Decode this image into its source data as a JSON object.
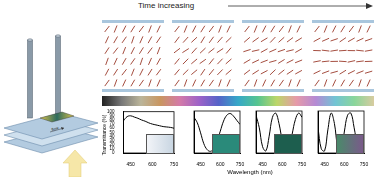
{
  "header": {
    "title": "Time increasing"
  },
  "device": {
    "label": "flow"
  },
  "spectra": {
    "x_label": "Wavelength (nm)",
    "y_label": "Transmittance (%)"
  },
  "chart_data": [
    {
      "type": "line",
      "x": [
        400,
        425,
        450,
        475,
        500,
        525,
        550,
        575,
        600,
        625,
        650,
        675,
        700,
        725,
        750
      ],
      "values": [
        78,
        88,
        90,
        87,
        84,
        80,
        77,
        73,
        70,
        68,
        66,
        64,
        63,
        62,
        60
      ],
      "color": "#000000",
      "xlim": [
        400,
        750
      ],
      "xticks": [
        450,
        600,
        750
      ],
      "ylim": [
        0,
        100
      ],
      "yticks": [
        0,
        10,
        20,
        30,
        40,
        50,
        60,
        70,
        80,
        90,
        100
      ]
    },
    {
      "type": "line",
      "x": [
        400,
        425,
        450,
        475,
        500,
        525,
        550,
        575,
        600,
        625,
        650,
        675,
        700,
        725,
        750
      ],
      "values": [
        85,
        72,
        48,
        22,
        8,
        4,
        10,
        28,
        52,
        76,
        90,
        94,
        88,
        78,
        68
      ],
      "color": "#000000",
      "xlim": [
        400,
        750
      ],
      "xticks": [
        450,
        600,
        750
      ],
      "ylim": [
        0,
        100
      ],
      "yticks": [
        0,
        10,
        20,
        30,
        40,
        50,
        60,
        70,
        80,
        90,
        100
      ],
      "tick_labels": "x"
    },
    {
      "type": "line",
      "x": [
        400,
        425,
        450,
        475,
        500,
        525,
        550,
        575,
        600,
        625,
        650,
        675,
        700,
        725,
        750
      ],
      "values": [
        90,
        60,
        15,
        5,
        40,
        85,
        95,
        70,
        30,
        6,
        10,
        45,
        80,
        95,
        85
      ],
      "color": "#000000",
      "xlim": [
        400,
        750
      ],
      "xticks": [
        450,
        600,
        750
      ],
      "ylim": [
        0,
        100
      ],
      "yticks": [
        0,
        10,
        20,
        30,
        40,
        50,
        60,
        70,
        80,
        90,
        100
      ],
      "tick_labels": "x"
    },
    {
      "type": "line",
      "x": [
        400,
        425,
        450,
        475,
        500,
        525,
        550,
        575,
        600,
        625,
        650,
        675,
        700,
        725,
        750
      ],
      "values": [
        60,
        10,
        5,
        55,
        95,
        70,
        15,
        5,
        50,
        90,
        95,
        60,
        20,
        8,
        40
      ],
      "color": "#000000",
      "xlim": [
        400,
        750
      ],
      "xticks": [
        450,
        600,
        750
      ],
      "ylim": [
        0,
        100
      ],
      "yticks": [
        0,
        10,
        20,
        30,
        40,
        50,
        60,
        70,
        80,
        90,
        100
      ],
      "tick_labels": "x"
    }
  ]
}
